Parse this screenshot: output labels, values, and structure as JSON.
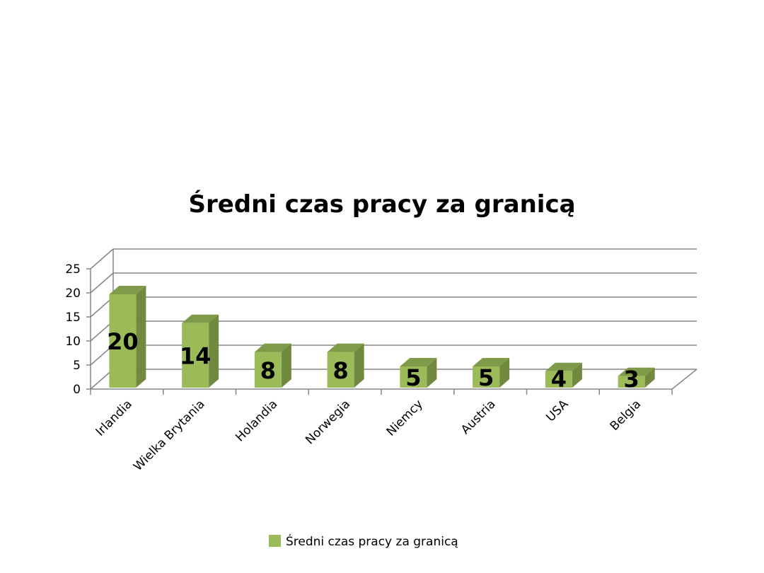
{
  "chart_data": {
    "type": "bar",
    "title": "Średni czas pracy za granicą",
    "categories": [
      "Irlandia",
      "Wielka Brytania",
      "Holandia",
      "Norwegia",
      "Niemcy",
      "Austria",
      "USA",
      "Belgia"
    ],
    "series": [
      {
        "name": "Średni czas pracy za granicą",
        "values": [
          20,
          14,
          8,
          8,
          5,
          5,
          4,
          3
        ]
      }
    ],
    "data_labels": [
      "20",
      "14",
      "8",
      "8",
      "5",
      "5",
      "4",
      "3"
    ],
    "ylim": [
      0,
      25
    ],
    "yticks": [
      0,
      5,
      10,
      15,
      20,
      25
    ],
    "xlabel": "",
    "ylabel": "",
    "grid": true,
    "legend_position": "bottom",
    "style": "3d-column",
    "colors": {
      "bar_front": "#9bbb59",
      "bar_side": "#71893f",
      "bar_top": "#7f9a48",
      "grid": "#868686"
    }
  }
}
